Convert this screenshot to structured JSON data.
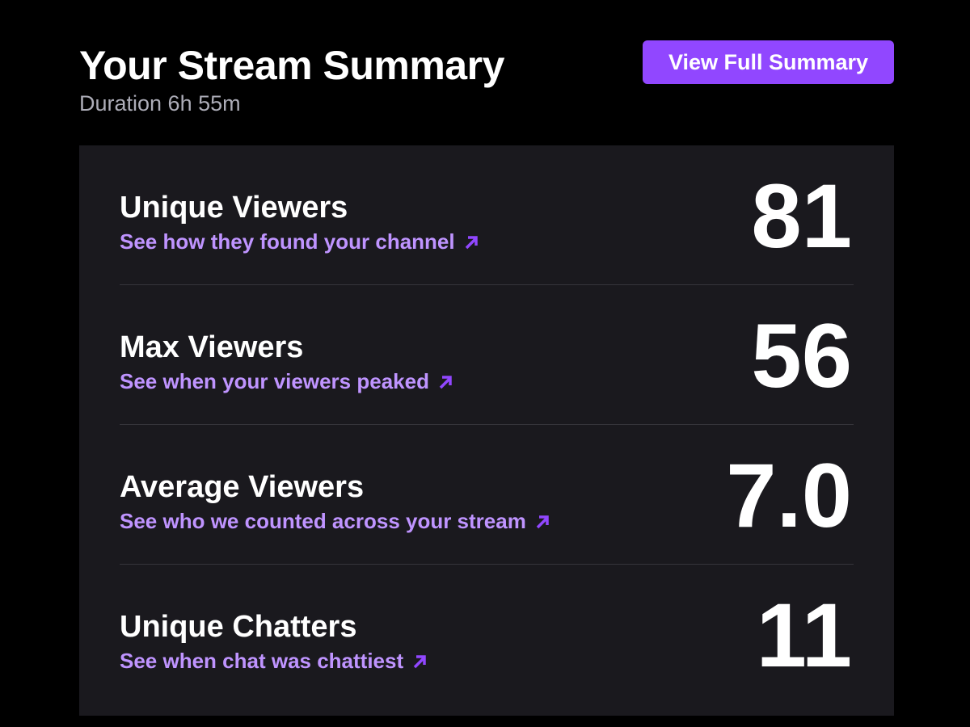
{
  "header": {
    "title": "Your Stream Summary",
    "subtitle": "Duration 6h 55m",
    "button": "View Full Summary"
  },
  "stats": [
    {
      "label": "Unique Viewers",
      "link": "See how they found your channel",
      "value": "81"
    },
    {
      "label": "Max Viewers",
      "link": "See when your viewers peaked",
      "value": "56"
    },
    {
      "label": "Average Viewers",
      "link": "See who we counted across your stream",
      "value": "7.0"
    },
    {
      "label": "Unique Chatters",
      "link": "See when chat was chattiest",
      "value": "11"
    }
  ]
}
